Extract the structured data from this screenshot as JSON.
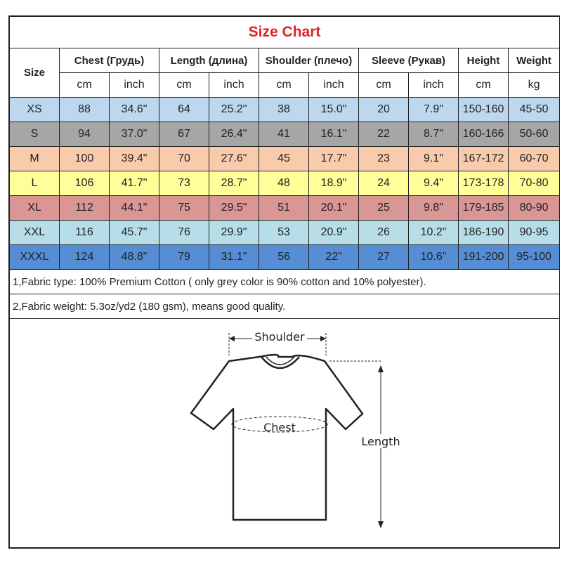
{
  "title": "Size Chart",
  "headers": {
    "size": "Size",
    "chest": "Chest  (Грудь)",
    "length": "Length (длина)",
    "shoulder": "Shoulder (плечо)",
    "sleeve": "Sleeve (Рукав)",
    "height": "Height",
    "weight": "Weight"
  },
  "units": [
    "cm",
    "inch",
    "cm",
    "inch",
    "cm",
    "inch",
    "cm",
    "inch",
    "cm",
    "kg"
  ],
  "rows": [
    {
      "color": "#bdd7ee",
      "cells": [
        "XS",
        "88",
        "34.6\"",
        "64",
        "25.2\"",
        "38",
        "15.0\"",
        "20",
        "7.9\"",
        "150-160",
        "45-50"
      ]
    },
    {
      "color": "#a6a6a6",
      "cells": [
        "S",
        "94",
        "37.0\"",
        "67",
        "26.4\"",
        "41",
        "16.1\"",
        "22",
        "8.7\"",
        "160-166",
        "50-60"
      ]
    },
    {
      "color": "#f8cbad",
      "cells": [
        "M",
        "100",
        "39.4\"",
        "70",
        "27.6\"",
        "45",
        "17.7\"",
        "23",
        "9.1\"",
        "167-172",
        "60-70"
      ]
    },
    {
      "color": "#ffff99",
      "cells": [
        "L",
        "106",
        "41.7\"",
        "73",
        "28.7\"",
        "48",
        "18.9\"",
        "24",
        "9.4\"",
        "173-178",
        "70-80"
      ]
    },
    {
      "color": "#da9694",
      "cells": [
        "XL",
        "112",
        "44.1\"",
        "75",
        "29.5\"",
        "51",
        "20.1\"",
        "25",
        "9.8\"",
        "179-185",
        "80-90"
      ]
    },
    {
      "color": "#b7dee8",
      "cells": [
        "XXL",
        "116",
        "45.7\"",
        "76",
        "29.9\"",
        "53",
        "20.9\"",
        "26",
        "10.2\"",
        "186-190",
        "90-95"
      ]
    },
    {
      "color": "#558ed5",
      "cells": [
        "XXXL",
        "124",
        "48.8\"",
        "79",
        "31.1\"",
        "56",
        "22\"",
        "27",
        "10.6\"",
        "191-200",
        "95-100"
      ]
    }
  ],
  "notes": [
    "1,Fabric type: 100% Premium Cotton ( only grey color is 90% cotton and 10% polyester).",
    "2,Fabric weight: 5.3oz/yd2 (180 gsm), means good quality."
  ],
  "diagram": {
    "shoulder": "Shoulder",
    "chest": "Chest",
    "length": "Length"
  }
}
